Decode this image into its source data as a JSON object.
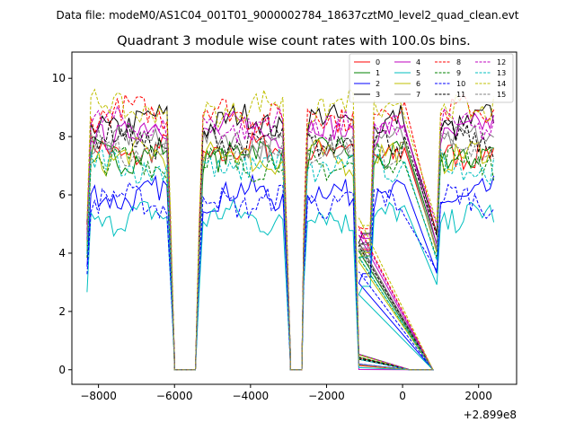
{
  "figure": {
    "suptitle": "Data file: modeM0/AS1C04_001T01_9000002784_18637cztM0_level2_quad_clean.evt"
  },
  "chart_data": {
    "type": "line",
    "title": "Quadrant 3 module wise count rates with 100.0s bins.",
    "xlabel": "",
    "ylabel": "",
    "x_offset_label": "+2.899e8",
    "xlim": [
      -8700,
      3000
    ],
    "ylim": [
      -0.5,
      10.9
    ],
    "xticks": [
      -8000,
      -6000,
      -4000,
      -2000,
      0,
      2000
    ],
    "xtick_labels": [
      "−8000",
      "−6000",
      "−4000",
      "−2000",
      "0",
      "2000"
    ],
    "yticks": [
      0,
      2,
      4,
      6,
      8,
      10
    ],
    "ytick_labels": [
      "0",
      "2",
      "4",
      "6",
      "8",
      "10"
    ],
    "legend_position": "top-right",
    "segments": [
      {
        "start": -8300,
        "end": -6100
      },
      {
        "start": -5350,
        "end": -3050
      },
      {
        "start": -2600,
        "end": -1250
      },
      {
        "start": -1150,
        "end": 100
      },
      {
        "start": 900,
        "end": 2450
      }
    ],
    "gaps": [
      {
        "start": -6000,
        "end": -5450
      },
      {
        "start": -2950,
        "end": -2650
      },
      {
        "start": 200,
        "end": 800
      }
    ],
    "series": [
      {
        "name": "0",
        "color": "#ff0000",
        "dash": "solid",
        "level": 7.5
      },
      {
        "name": "1",
        "color": "#008000",
        "dash": "solid",
        "level": 7.4
      },
      {
        "name": "2",
        "color": "#0000ff",
        "dash": "solid",
        "level": 6.0
      },
      {
        "name": "3",
        "color": "#000000",
        "dash": "solid",
        "level": 8.5
      },
      {
        "name": "4",
        "color": "#bf00bf",
        "dash": "solid",
        "level": 8.2
      },
      {
        "name": "5",
        "color": "#00bfbf",
        "dash": "solid",
        "level": 5.2
      },
      {
        "name": "6",
        "color": "#bfbf00",
        "dash": "solid",
        "level": 7.3
      },
      {
        "name": "7",
        "color": "#808080",
        "dash": "solid",
        "level": 7.8
      },
      {
        "name": "8",
        "color": "#ff0000",
        "dash": "dashed",
        "level": 8.8
      },
      {
        "name": "9",
        "color": "#008000",
        "dash": "dashed",
        "level": 7.1
      },
      {
        "name": "10",
        "color": "#0000ff",
        "dash": "dashed",
        "level": 5.8
      },
      {
        "name": "11",
        "color": "#000000",
        "dash": "dashed",
        "level": 7.9
      },
      {
        "name": "12",
        "color": "#bf00bf",
        "dash": "dashed",
        "level": 8.4
      },
      {
        "name": "13",
        "color": "#00bfbf",
        "dash": "dashed",
        "level": 7.0
      },
      {
        "name": "14",
        "color": "#bfbf00",
        "dash": "dashed",
        "level": 9.0
      },
      {
        "name": "15",
        "color": "#808080",
        "dash": "dashed",
        "level": 7.6
      }
    ]
  }
}
